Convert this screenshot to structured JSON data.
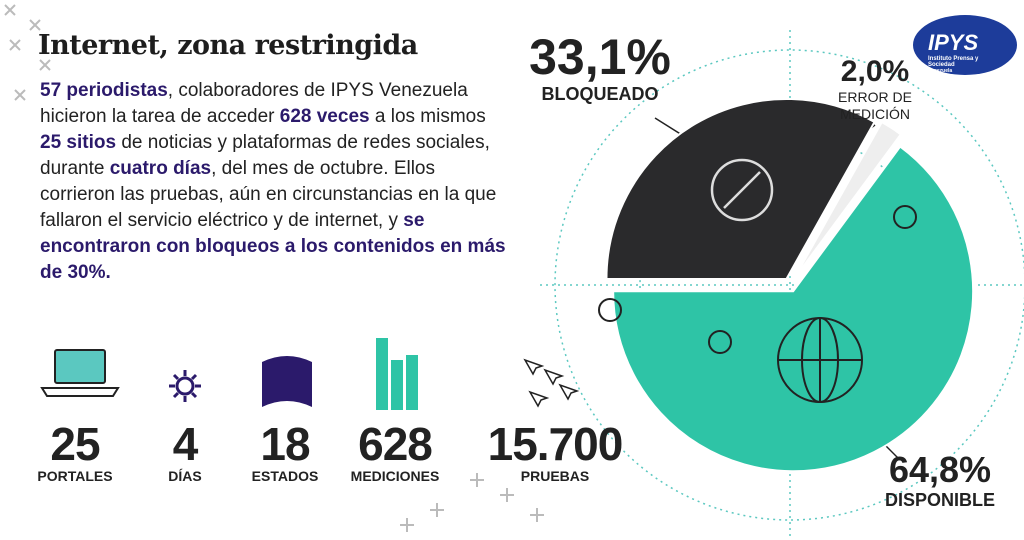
{
  "title": "Internet, zona restringida",
  "intro": [
    "57 periodistas",
    ", colaboradores de IPYS Venezuela hicieron la tarea de acceder ",
    "628 veces",
    " a los mismos ",
    "25 sitios",
    " de noticias y plataformas de redes sociales, durante ",
    "cuatro días",
    ", del mes de octubre. Ellos corrieron las pruebas, aún en circunstancias en la que fallaron el servicio eléctrico y de internet, y ",
    "se encontraron con bloqueos a los contenidos en más de 30%."
  ],
  "stats": [
    {
      "number": "25",
      "label": "PORTALES"
    },
    {
      "number": "4",
      "label": "DÍAS"
    },
    {
      "number": "18",
      "label": "ESTADOS"
    },
    {
      "number": "628",
      "label": "MEDICIONES"
    },
    {
      "number": "15.700",
      "label": "PRUEBAS"
    }
  ],
  "logo": {
    "name": "IPYS",
    "tagline": "Instituto Prensa y Sociedad",
    "country": "Venezuela"
  },
  "chart_data": {
    "type": "pie",
    "categories": [
      "BLOQUEADO",
      "ERROR DE MEDICIÓN",
      "DISPONIBLE"
    ],
    "values": [
      33.1,
      2.0,
      64.8
    ],
    "value_labels": [
      "33,1%",
      "2,0%",
      "64,8%"
    ],
    "colors": [
      "#2a2a2c",
      "#eeeeee",
      "#2ec4a6"
    ]
  }
}
